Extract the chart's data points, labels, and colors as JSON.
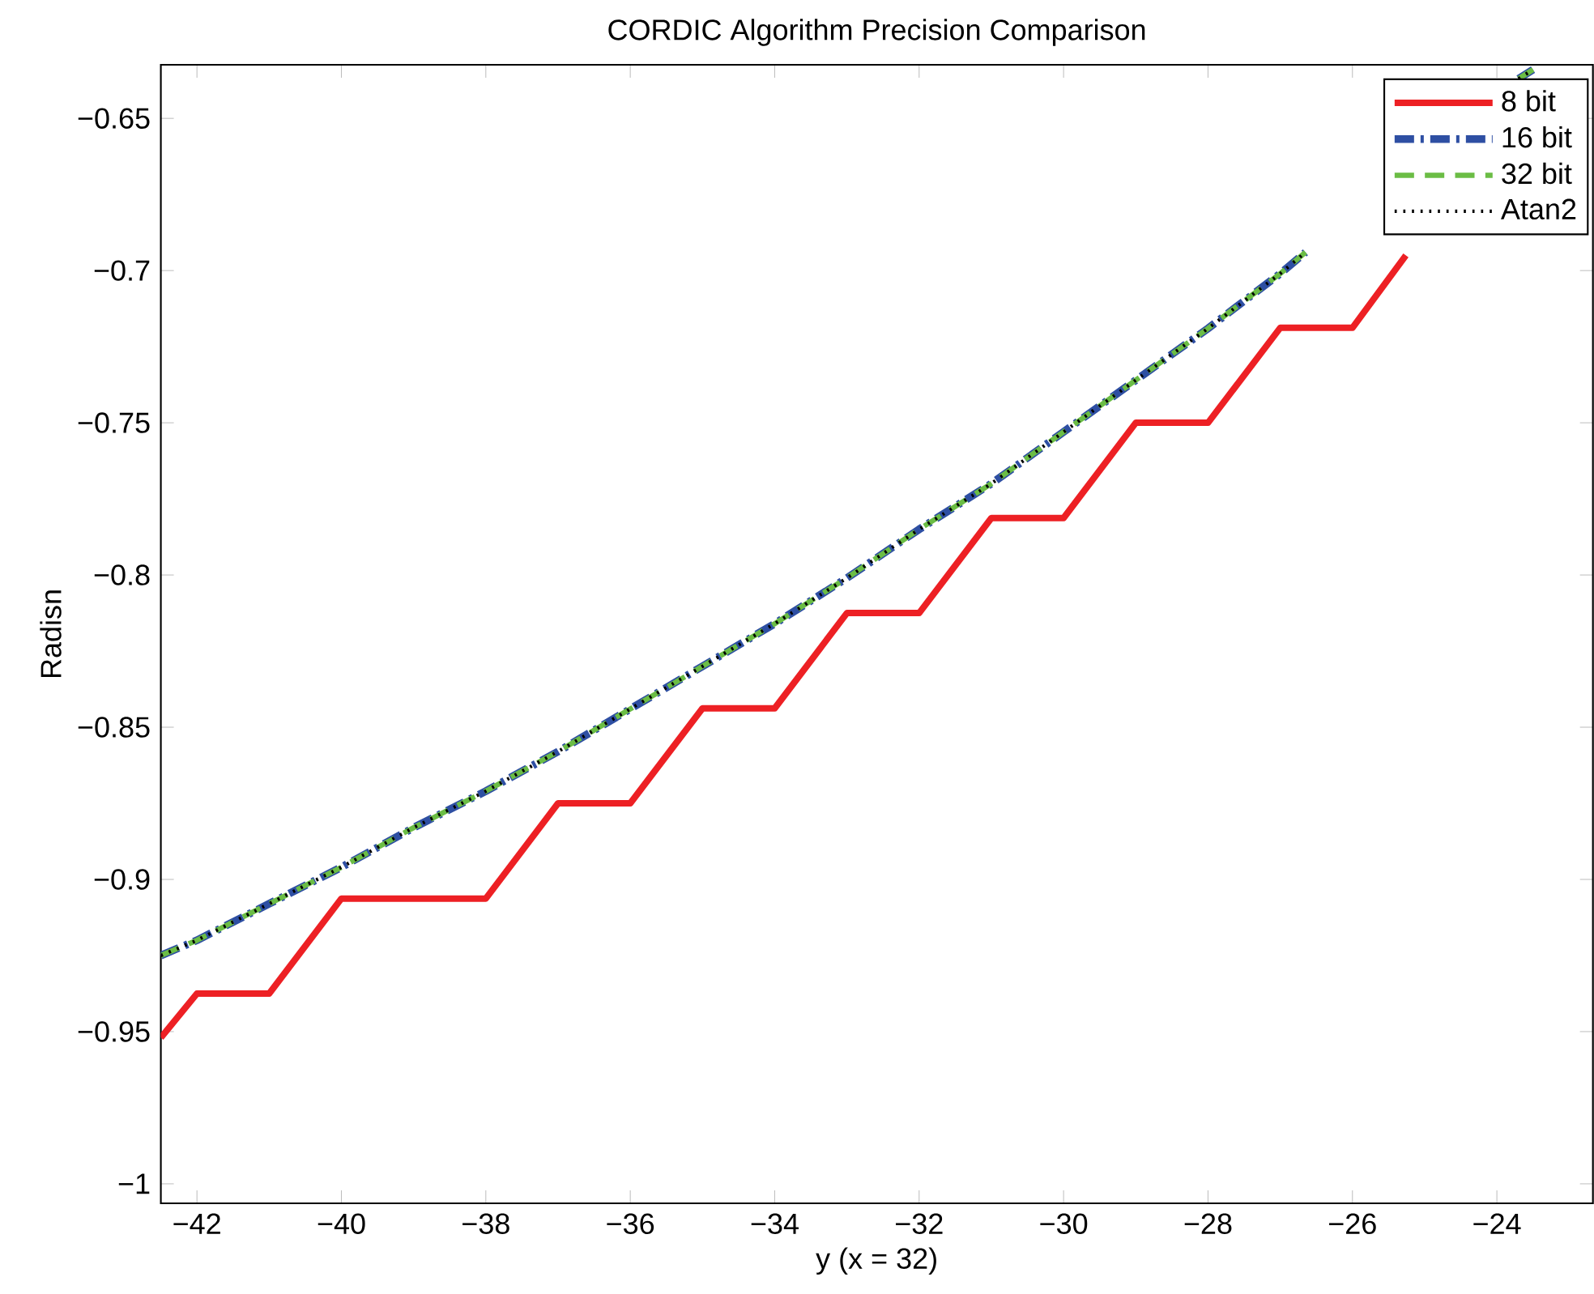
{
  "chart_data": {
    "type": "line",
    "title": "CORDIC Algorithm Precision Comparison",
    "xlabel": "y (x = 32)",
    "ylabel": "Radisn",
    "xlim": [
      -42.5,
      -22.67
    ],
    "ylim": [
      -1.0064,
      -0.6324
    ],
    "xticks": [
      {
        "value": -42,
        "label": "−42"
      },
      {
        "value": -40,
        "label": "−40"
      },
      {
        "value": -38,
        "label": "−38"
      },
      {
        "value": -36,
        "label": "−36"
      },
      {
        "value": -34,
        "label": "−34"
      },
      {
        "value": -32,
        "label": "−32"
      },
      {
        "value": -30,
        "label": "−30"
      },
      {
        "value": -28,
        "label": "−28"
      },
      {
        "value": -26,
        "label": "−26"
      },
      {
        "value": -24,
        "label": "−24"
      }
    ],
    "yticks": [
      {
        "value": -1,
        "label": "−1"
      },
      {
        "value": -0.95,
        "label": "−0.95"
      },
      {
        "value": -0.9,
        "label": "−0.9"
      },
      {
        "value": -0.85,
        "label": "−0.85"
      },
      {
        "value": -0.8,
        "label": "−0.8"
      },
      {
        "value": -0.75,
        "label": "−0.75"
      },
      {
        "value": -0.7,
        "label": "−0.7"
      },
      {
        "value": -0.65,
        "label": "−0.65"
      }
    ],
    "legend": "top right",
    "series": [
      {
        "name": "8 bit",
        "color": "#ed2024",
        "line_style": "solid",
        "x": [
          -42.5,
          -42,
          -41,
          -40,
          -38,
          -37,
          -36,
          -35,
          -34,
          -33,
          -32,
          -31,
          -30,
          -29,
          -28,
          -27,
          -26,
          -25.26
        ],
        "values": [
          -0.952,
          -0.9375,
          -0.9375,
          -0.9063,
          -0.9063,
          -0.875,
          -0.875,
          -0.8438,
          -0.8438,
          -0.8125,
          -0.8125,
          -0.7813,
          -0.7813,
          -0.75,
          -0.75,
          -0.7188,
          -0.7188,
          -0.695
        ]
      },
      {
        "name": "16 bit",
        "color": "#2e4fa3",
        "line_style": "dashdot",
        "x": [
          -42.5,
          -42,
          -41,
          -40,
          -39,
          -38,
          -37,
          -36,
          -35,
          -34,
          -33,
          -32,
          -31,
          -30,
          -29,
          -28,
          -27,
          -26.65,
          -25,
          -23.7,
          -23.5
        ],
        "values": [
          -0.925,
          -0.92,
          -0.908,
          -0.896,
          -0.883,
          -0.871,
          -0.858,
          -0.844,
          -0.83,
          -0.816,
          -0.801,
          -0.785,
          -0.77,
          -0.753,
          -0.736,
          -0.719,
          -0.701,
          -0.694,
          null,
          -0.637,
          -0.634
        ]
      },
      {
        "name": "32 bit",
        "color": "#6bbd45",
        "line_style": "dashed",
        "x": [
          -42.5,
          -42,
          -41,
          -40,
          -39,
          -38,
          -37,
          -36,
          -35,
          -34,
          -33,
          -32,
          -31,
          -30,
          -29,
          -28,
          -27,
          -26.65,
          -25,
          -23.7,
          -23.5
        ],
        "values": [
          -0.925,
          -0.92,
          -0.908,
          -0.896,
          -0.883,
          -0.871,
          -0.858,
          -0.844,
          -0.83,
          -0.816,
          -0.801,
          -0.785,
          -0.77,
          -0.753,
          -0.736,
          -0.719,
          -0.701,
          -0.694,
          null,
          -0.637,
          -0.634
        ]
      },
      {
        "name": "Atan2",
        "color": "#000000",
        "line_style": "dotted",
        "x": [
          -42.5,
          -42,
          -41,
          -40,
          -39,
          -38,
          -37,
          -36,
          -35,
          -34,
          -33,
          -32,
          -31,
          -30,
          -29,
          -28,
          -27,
          -26.65,
          -25,
          -23.7,
          -23.5
        ],
        "values": [
          -0.925,
          -0.92,
          -0.908,
          -0.896,
          -0.883,
          -0.871,
          -0.858,
          -0.844,
          -0.83,
          -0.816,
          -0.801,
          -0.785,
          -0.77,
          -0.753,
          -0.736,
          -0.719,
          -0.701,
          -0.694,
          null,
          -0.637,
          -0.634
        ]
      }
    ]
  }
}
